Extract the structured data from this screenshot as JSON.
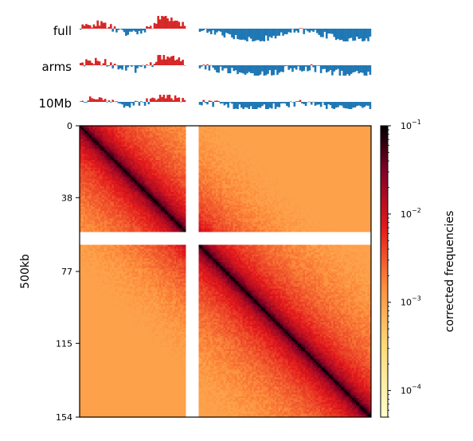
{
  "chart_data": [
    {
      "type": "area",
      "title": "",
      "tracks": [
        {
          "name": "full"
        },
        {
          "name": "arms"
        },
        {
          "name": "10Mb"
        }
      ],
      "colors": {
        "positive": "#d62728",
        "negative": "#1f77b4"
      },
      "x": [
        0,
        154
      ]
    },
    {
      "type": "heatmap",
      "title": "",
      "ylabel": "500kb",
      "yticks": [
        "0",
        "38",
        "77",
        "115",
        "154"
      ],
      "ytick_values": [
        0,
        38,
        77,
        115,
        154
      ],
      "xlim": [
        0,
        154
      ],
      "ylim": [
        0,
        154
      ],
      "masked_bins": [
        56,
        57,
        58,
        59,
        60,
        61,
        62
      ],
      "colorbar": {
        "label": "corrected frequencies",
        "scale": "log",
        "range": [
          5e-05,
          0.1
        ],
        "ticks": [
          {
            "value": 0.1,
            "base": "10",
            "exp": "−1"
          },
          {
            "value": 0.01,
            "base": "10",
            "exp": "−2"
          },
          {
            "value": 0.001,
            "base": "10",
            "exp": "−3"
          },
          {
            "value": 0.0001,
            "base": "10",
            "exp": "−4"
          }
        ],
        "colormap": [
          "#ffffcc",
          "#fed976",
          "#fd8d3c",
          "#e31a1c",
          "#800026",
          "#000000"
        ]
      }
    }
  ]
}
